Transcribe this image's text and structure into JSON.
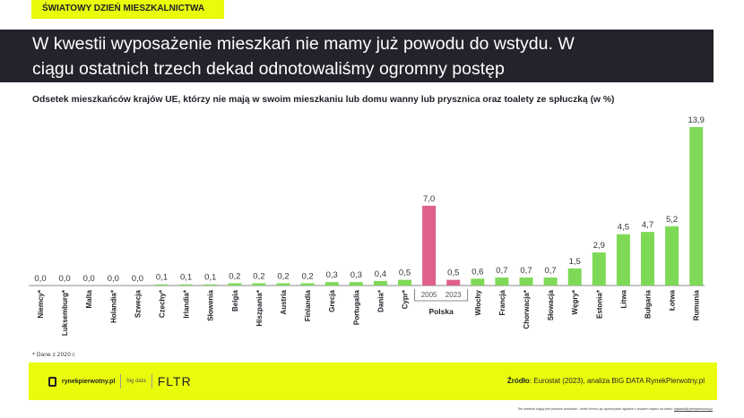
{
  "tag": "ŚWIATOWY DZIEŃ MIESZKALNICTWA",
  "title_line1": "W kwestii wyposażenie mieszkań nie mamy już powodu do wstydu. W",
  "title_line2": "ciągu ostatnich trzech dekad odnotowaliśmy ogromny postęp",
  "note": "* Dane z 2020 r.",
  "footer": {
    "logo_text": "rynekpierwotny.pl",
    "logo_bigdata": "big data",
    "logo_fltr": "FLTR",
    "source_label": "Źródło",
    "source_text": ": Eurostat (2023), analiza BIG DATA RynekPierwotny.pl"
  },
  "disclaimer": "Ten materiał objęty jest prawem autorskim. Jeżeli chcesz go wykorzystać zgodnie z prawem napisz na adres: ",
  "disclaimer_email": "bigdata@rynekpierwotny.pl",
  "chart_data": {
    "type": "bar",
    "title": "Odsetek mieszkańców krajów UE, którzy nie mają w swoim mieszkaniu lub domu wanny lub prysznica oraz toalety ze spłuczką (w %)",
    "categories": [
      "Niemcy*",
      "Luksemburg*",
      "Malta",
      "Holandia*",
      "Szwecja",
      "Czechy*",
      "Irlandia*",
      "Słowenia",
      "Belgia",
      "Hiszpania*",
      "Austria",
      "Finlandia",
      "Grecja",
      "Portugalia",
      "Dania*",
      "Cypr*",
      "2005",
      "2023",
      "Włochy",
      "Francja",
      "Chorwacja*",
      "Słowacja",
      "Węgry*",
      "Estonia*",
      "Litwa",
      "Bułgaria",
      "Łotwa",
      "Rumunia"
    ],
    "values": [
      0,
      0,
      0,
      0,
      0,
      0.1,
      0.1,
      0.1,
      0.2,
      0.2,
      0.2,
      0.2,
      0.3,
      0.3,
      0.4,
      0.5,
      7.0,
      0.5,
      0.6,
      0.7,
      0.7,
      0.7,
      1.5,
      2.9,
      4.5,
      4.7,
      5.2,
      13.9
    ],
    "labels": [
      "0,0",
      "0,0",
      "0,0",
      "0,0",
      "0,0",
      "0,1",
      "0,1",
      "0,1",
      "0,2",
      "0,2",
      "0,2",
      "0,2",
      "0,3",
      "0,3",
      "0,4",
      "0,5",
      "7,0",
      "0,5",
      "0,6",
      "0,7",
      "0,7",
      "0,7",
      "1,5",
      "2,9",
      "4,5",
      "4,7",
      "5,2",
      "13,9"
    ],
    "group_label": "Polska",
    "highlight": [
      16,
      17
    ],
    "colors": {
      "default": "#7ed957",
      "highlight": "#e0608c"
    }
  }
}
